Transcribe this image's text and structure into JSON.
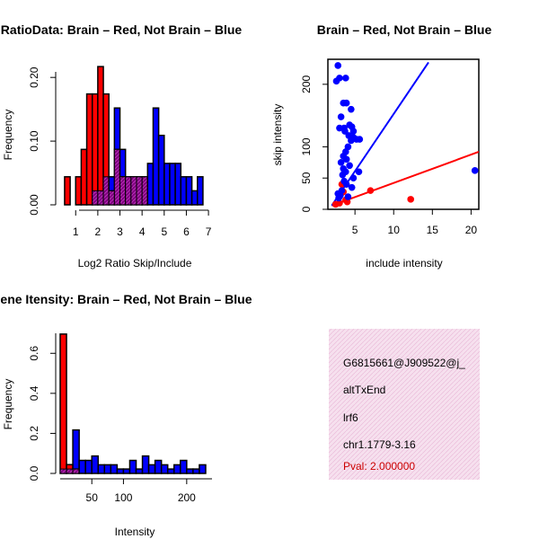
{
  "chart_data": [
    {
      "id": "ratio",
      "type": "bar",
      "title": "RatioData: Brain – Red, Not Brain – Blue",
      "xlabel": "Log2 Ratio Skip/Include",
      "ylabel": "Frequency",
      "xlim": [
        0.3,
        7.2
      ],
      "ylim": [
        0,
        0.22
      ],
      "xticks": [
        "1",
        "2",
        "3",
        "4",
        "5",
        "6",
        "7"
      ],
      "yticks": [
        "0.00",
        "0.10",
        "0.20"
      ],
      "bin_width": 0.25,
      "series": [
        {
          "name": "Brain",
          "color": "#ff0000",
          "starts": [
            0.5,
            1.0,
            1.25,
            1.5,
            1.75,
            2.0,
            2.25,
            2.5,
            2.75,
            3.0,
            3.25,
            3.5,
            3.75,
            4.0
          ],
          "values": [
            0.044,
            0.044,
            0.087,
            0.174,
            0.174,
            0.217,
            0.174,
            0.022,
            0.087,
            0.044,
            0.044,
            0.044,
            0.044,
            0.044
          ]
        },
        {
          "name": "Not Brain",
          "color": "#0000ff",
          "starts": [
            1.75,
            2.0,
            2.25,
            2.5,
            2.75,
            3.0,
            3.25,
            3.5,
            3.75,
            4.0,
            4.25,
            4.5,
            4.75,
            5.0,
            5.25,
            5.5,
            5.75,
            6.0,
            6.25,
            6.5
          ],
          "values": [
            0.022,
            0.022,
            0.044,
            0.044,
            0.152,
            0.087,
            0.044,
            0.044,
            0.044,
            0.044,
            0.065,
            0.152,
            0.109,
            0.065,
            0.065,
            0.065,
            0.044,
            0.044,
            0.022,
            0.044
          ]
        }
      ]
    },
    {
      "id": "scatter",
      "type": "scatter",
      "title": "Brain – Red, Not Brain – Blue",
      "xlabel": "include intensity",
      "ylabel": "skip intensity",
      "xlim": [
        1.5,
        21
      ],
      "ylim": [
        0,
        240
      ],
      "xticks": [
        "5",
        "10",
        "15",
        "20"
      ],
      "yticks": [
        "0",
        "50",
        "100",
        "200"
      ],
      "series": [
        {
          "name": "Brain",
          "color": "#ff0000",
          "points": [
            [
              2.5,
              8
            ],
            [
              3.0,
              10
            ],
            [
              3.2,
              25
            ],
            [
              3.5,
              28
            ],
            [
              3.8,
              15
            ],
            [
              4.0,
              12
            ],
            [
              3.3,
              40
            ],
            [
              7.0,
              30
            ],
            [
              12.2,
              16
            ]
          ],
          "fit_line": [
            [
              2,
              6
            ],
            [
              21,
              92
            ]
          ]
        },
        {
          "name": "Not Brain",
          "color": "#0000ff",
          "points": [
            [
              2.8,
              230
            ],
            [
              2.6,
              205
            ],
            [
              3.0,
              210
            ],
            [
              3.8,
              210
            ],
            [
              3.5,
              170
            ],
            [
              3.9,
              170
            ],
            [
              4.5,
              160
            ],
            [
              3.2,
              148
            ],
            [
              3.0,
              130
            ],
            [
              3.6,
              130
            ],
            [
              4.3,
              135
            ],
            [
              4.6,
              132
            ],
            [
              4.8,
              125
            ],
            [
              3.7,
              125
            ],
            [
              4.2,
              118
            ],
            [
              4.8,
              115
            ],
            [
              5.2,
              112
            ],
            [
              5.6,
              112
            ],
            [
              4.5,
              110
            ],
            [
              4.1,
              100
            ],
            [
              3.8,
              92
            ],
            [
              3.5,
              85
            ],
            [
              3.9,
              80
            ],
            [
              3.2,
              75
            ],
            [
              4.3,
              70
            ],
            [
              3.5,
              65
            ],
            [
              3.8,
              60
            ],
            [
              5.5,
              60
            ],
            [
              3.4,
              55
            ],
            [
              4.8,
              50
            ],
            [
              3.6,
              45
            ],
            [
              3.9,
              40
            ],
            [
              4.6,
              35
            ],
            [
              3.3,
              30
            ],
            [
              2.8,
              25
            ],
            [
              3.1,
              22
            ],
            [
              2.9,
              18
            ],
            [
              4.1,
              20
            ],
            [
              20.5,
              62
            ]
          ],
          "fit_line": [
            [
              2,
              6
            ],
            [
              14.5,
              235
            ]
          ]
        }
      ]
    },
    {
      "id": "intensity",
      "type": "bar",
      "title": "Gene Itensity: Brain – Red, Not Brain – Blue",
      "xlabel": "Intensity",
      "ylabel": "Frequency",
      "xlim": [
        0,
        240
      ],
      "ylim": [
        0,
        0.7
      ],
      "xticks": [
        "50",
        "100",
        "200"
      ],
      "yticks": [
        "0.0",
        "0.2",
        "0.4",
        "0.6"
      ],
      "bin_width": 10,
      "series": [
        {
          "name": "Brain",
          "color": "#ff0000",
          "starts": [
            0,
            10,
            20
          ],
          "values": [
            0.696,
            0.044,
            0.022
          ]
        },
        {
          "name": "Not Brain",
          "color": "#0000ff",
          "starts": [
            0,
            10,
            20,
            30,
            40,
            50,
            60,
            70,
            80,
            90,
            100,
            110,
            120,
            130,
            140,
            150,
            160,
            170,
            180,
            190,
            200,
            210,
            220
          ],
          "values": [
            0.022,
            0.022,
            0.217,
            0.065,
            0.065,
            0.087,
            0.043,
            0.043,
            0.043,
            0.022,
            0.022,
            0.065,
            0.022,
            0.087,
            0.043,
            0.065,
            0.043,
            0.022,
            0.043,
            0.065,
            0.022,
            0.022,
            0.043
          ]
        }
      ]
    }
  ],
  "info_panel": {
    "line1": "G6815661@J909522@j_",
    "line2": "altTxEnd",
    "line3": "lrf6",
    "line4": "chr1.1779-3.16",
    "pval": "Pval: 2.000000"
  },
  "colors": {
    "brain": "#ff0000",
    "not_brain": "#0000ff",
    "overlap": "#800080",
    "panel_bg": "#f6e0ee"
  }
}
